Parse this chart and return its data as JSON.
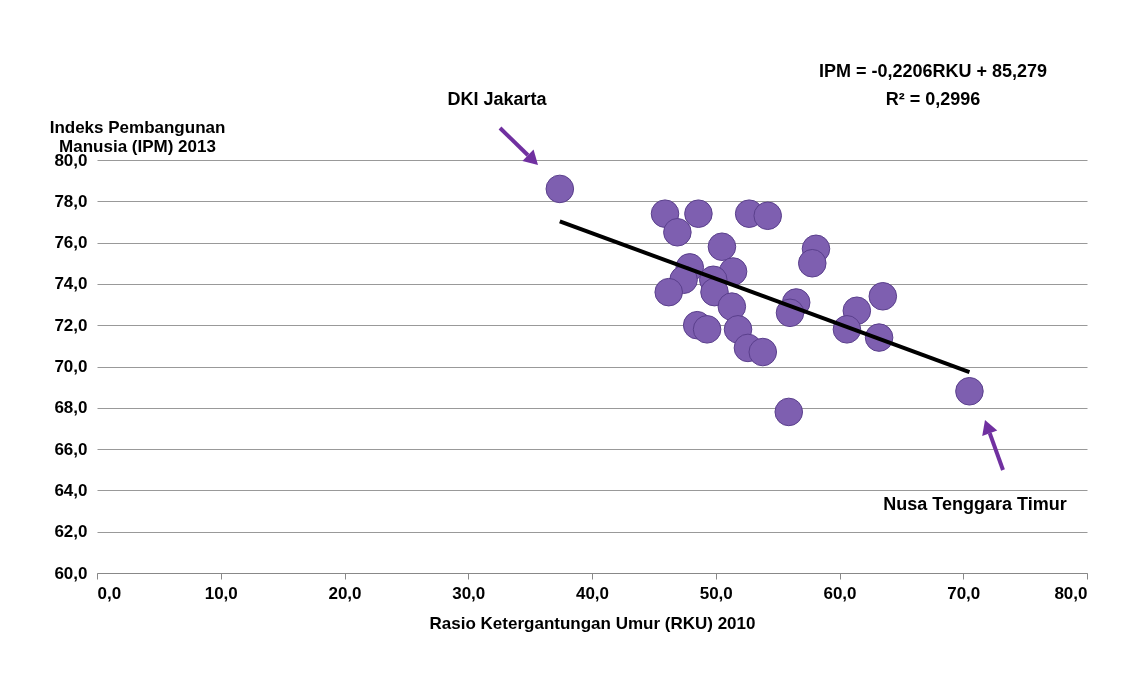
{
  "chart_data": {
    "type": "scatter",
    "xlabel": "Rasio Ketergantungan Umur (RKU) 2010",
    "ylabel": "Indeks Pembangunan Manusia (IPM) 2013",
    "xlim": [
      0,
      80
    ],
    "xticks": [
      {
        "value": 0,
        "label": "0,0"
      },
      {
        "value": 10,
        "label": "10,0"
      },
      {
        "value": 20,
        "label": "20,0"
      },
      {
        "value": 30,
        "label": "30,0"
      },
      {
        "value": 40,
        "label": "40,0"
      },
      {
        "value": 50,
        "label": "50,0"
      },
      {
        "value": 60,
        "label": "60,0"
      },
      {
        "value": 70,
        "label": "70,0"
      },
      {
        "value": 80,
        "label": "80,0"
      }
    ],
    "ylim": [
      60,
      80
    ],
    "yticks": [
      {
        "value": 60,
        "label": "60,0"
      },
      {
        "value": 62,
        "label": "62,0"
      },
      {
        "value": 64,
        "label": "64,0"
      },
      {
        "value": 66,
        "label": "66,0"
      },
      {
        "value": 68,
        "label": "68,0"
      },
      {
        "value": 70,
        "label": "70,0"
      },
      {
        "value": 72,
        "label": "72,0"
      },
      {
        "value": 74,
        "label": "74,0"
      },
      {
        "value": 76,
        "label": "76,0"
      },
      {
        "value": 78,
        "label": "78,0"
      },
      {
        "value": 80,
        "label": "80,0"
      }
    ],
    "grid": "y",
    "marker": "circle",
    "series": [
      {
        "type": "scatter",
        "color": "#7e5fb0",
        "x": [
          37.4,
          45.9,
          46.9,
          48.6,
          52.7,
          54.2,
          50.5,
          58.1,
          57.8,
          47.9,
          47.4,
          46.2,
          51.4,
          49.8,
          49.9,
          51.3,
          56.5,
          56.0,
          61.4,
          63.5,
          60.6,
          63.2,
          48.5,
          49.3,
          51.8,
          52.6,
          53.8,
          55.9,
          70.5
        ],
        "values": [
          78.6,
          77.4,
          76.5,
          77.4,
          77.4,
          77.3,
          75.8,
          75.7,
          75.0,
          74.8,
          74.2,
          73.6,
          74.6,
          74.2,
          73.6,
          72.9,
          73.1,
          72.6,
          72.7,
          73.4,
          71.8,
          71.4,
          72.0,
          71.8,
          71.8,
          70.9,
          70.7,
          67.8,
          68.8
        ]
      },
      {
        "type": "line",
        "color": "#000000",
        "line_style": "solid",
        "marker": "none",
        "x": [
          37.4,
          70.5
        ],
        "values": [
          77.03,
          69.73
        ]
      }
    ],
    "annotations": [
      "DKI Jakarta",
      "Nusa Tenggara Timur",
      "IPM = -0,2206RKU + 85,279",
      "R² = 0,2996"
    ]
  }
}
